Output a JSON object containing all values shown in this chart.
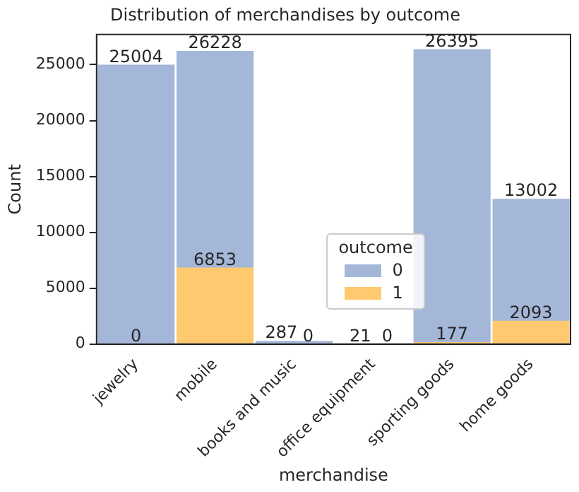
{
  "chart_data": {
    "type": "bar",
    "title": "Distribution of merchandises by outcome",
    "xlabel": "merchandise",
    "ylabel": "Count",
    "legend_title": "outcome",
    "categories": [
      "jewelry",
      "mobile",
      "books and music",
      "office equipment",
      "sporting goods",
      "home goods"
    ],
    "series": [
      {
        "name": "0",
        "color": "#a4b7d8",
        "values": [
          25004,
          26228,
          287,
          21,
          26395,
          13002
        ]
      },
      {
        "name": "1",
        "color": "#fec96f",
        "values": [
          0,
          6853,
          0,
          0,
          177,
          2093
        ]
      }
    ],
    "ylim": [
      0,
      27700
    ],
    "yticks": [
      0,
      5000,
      10000,
      15000,
      20000,
      25000
    ],
    "grid": false,
    "legend": "bottom",
    "data_labels": true
  }
}
